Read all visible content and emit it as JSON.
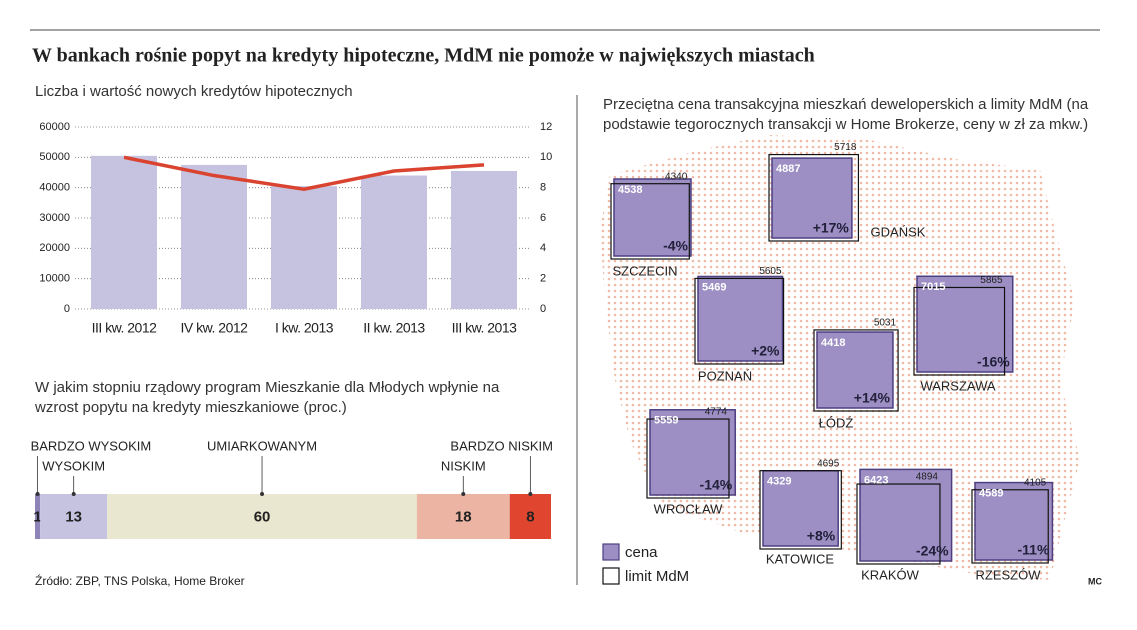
{
  "title": "W bankach rośnie popyt na kredyty hipoteczne, MdM nie pomoże w największych miastach",
  "source": "Źródło: ZBP, TNS Polska, Home Broker",
  "credit": "MC",
  "chart_data": [
    {
      "type": "bar",
      "title": "Liczba i wartość nowych kredytów hipotecznych",
      "categories": [
        "III kw. 2012",
        "IV kw. 2012",
        "I kw. 2013",
        "II kw. 2013",
        "III kw. 2013"
      ],
      "series": [
        {
          "color": "#c6c3e1",
          "values": [
            50500,
            47500,
            40500,
            44000,
            45500
          ]
        },
        {
          "color": "#d9432f",
          "axis": "y2",
          "values": [
            10,
            8.8,
            7.9,
            9.1,
            9.5
          ]
        }
      ],
      "ylim": [
        0,
        60000
      ],
      "yticks": [
        0,
        10000,
        20000,
        30000,
        40000,
        50000,
        60000
      ],
      "y2lim": [
        0,
        12
      ],
      "y2ticks": [
        0,
        2,
        4,
        6,
        8,
        10,
        12
      ],
      "grid": true
    },
    {
      "type": "stacked_bar",
      "title": "W jakim stopniu rządowy program Mieszkanie dla Młodych wpłynie na wzrost popytu na kredyty mieszkaniowe (proc.)",
      "series": [
        {
          "name": "BARDZO WYSOKIM",
          "color": "#8e84b8",
          "values": [
            1
          ]
        },
        {
          "name": "WYSOKIM",
          "color": "#c6c3e1",
          "values": [
            13
          ]
        },
        {
          "name": "UMIARKOWANYM",
          "color": "#e9e7cf",
          "values": [
            60
          ]
        },
        {
          "name": "NISKIM",
          "color": "#ebb4a3",
          "values": [
            18
          ]
        },
        {
          "name": "BARDZO NISKIM",
          "color": "#e0452f",
          "values": [
            8
          ]
        }
      ]
    },
    {
      "type": "map",
      "title": "Przeciętna cena transakcyjna mieszkań deweloperskich a limity MdM (na podstawie tegorocznych transakcji w Home Brokerze, ceny w zł za mkw.)",
      "categories": [
        "SZCZECIN",
        "GDAŃSK",
        "POZNAŃ",
        "ŁÓDŹ",
        "WARSZAWA",
        "WROCŁAW",
        "KATOWICE",
        "KRAKÓW",
        "RZESZÓW"
      ],
      "series": [
        {
          "name": "cena",
          "color": "#9d8fc4",
          "values": [
            4538,
            4887,
            5469,
            4418,
            7015,
            5559,
            4329,
            6423,
            4589
          ]
        },
        {
          "name": "limit MdM",
          "color": "#ffffff",
          "values": [
            4340,
            5718,
            5605,
            5031,
            5865,
            4774,
            4695,
            4894,
            4105
          ]
        }
      ],
      "change": {
        "values": [
          -4,
          17,
          2,
          14,
          -16,
          -14,
          8,
          -24,
          -11
        ],
        "value_labels": [
          "-4%",
          "+17%",
          "+2%",
          "+14%",
          "-16%",
          "-14%",
          "+8%",
          "-24%",
          "-11%"
        ]
      }
    }
  ]
}
